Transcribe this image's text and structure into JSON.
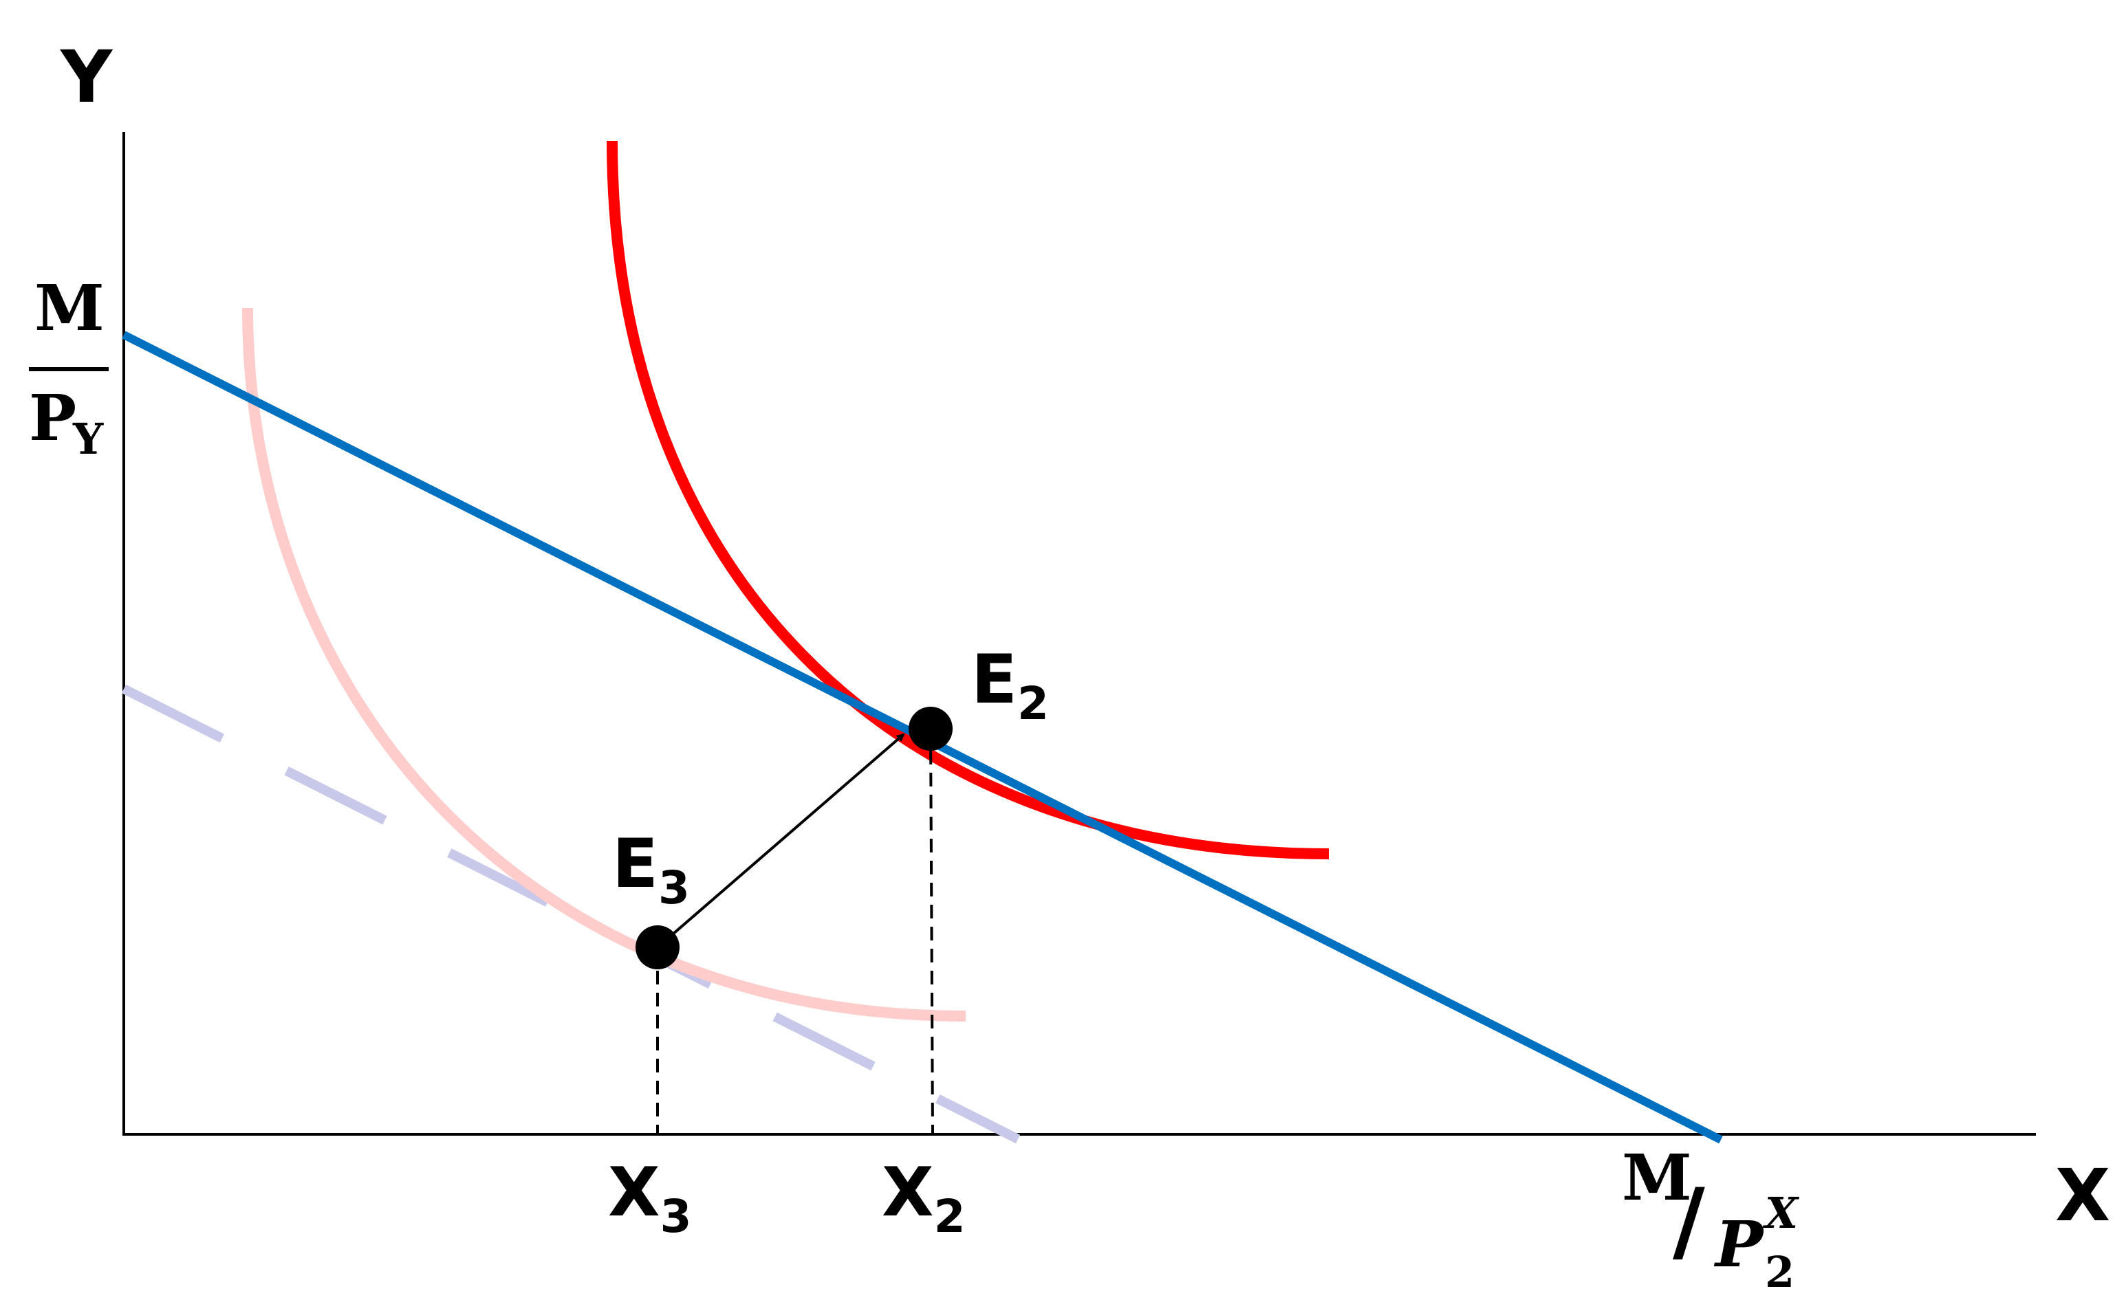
{
  "axes": {
    "y_label": "Y",
    "x_label": "X"
  },
  "y_intercept_label": {
    "numerator": "M",
    "denominator": "P",
    "denominator_sub": "Y"
  },
  "x_intercept_label": {
    "numerator": "M",
    "slash": "/",
    "denominator": "P",
    "denominator_sup": "X",
    "denominator_sub": "2"
  },
  "points": [
    {
      "id": "E2",
      "letter": "E",
      "sub": "2"
    },
    {
      "id": "E3",
      "letter": "E",
      "sub": "3"
    }
  ],
  "ticks": [
    {
      "id": "X3",
      "letter": "X",
      "sub": "3"
    },
    {
      "id": "X2",
      "letter": "X",
      "sub": "2"
    }
  ],
  "colors": {
    "budget_line": "#0070c0",
    "budget_line_old_dashed": "#c8c8ea",
    "indifference_curve_high": "#ff0000",
    "indifference_curve_low": "#ffcccc",
    "axes": "#000000",
    "points": "#000000"
  }
}
